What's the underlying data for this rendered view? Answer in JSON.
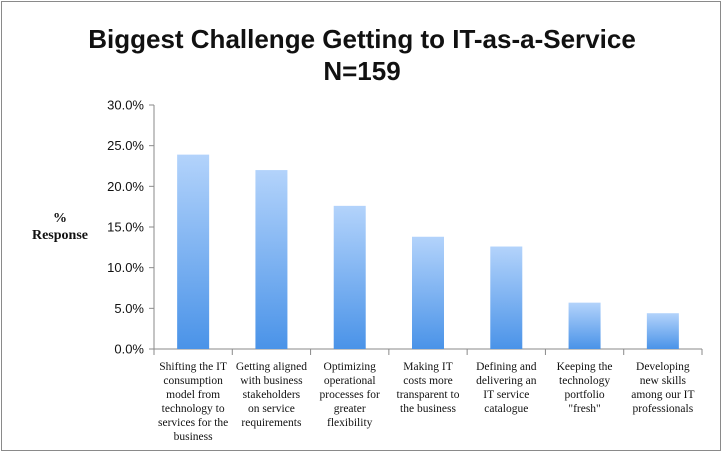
{
  "chart_data": {
    "type": "bar",
    "title": "Biggest Challenge Getting to IT-as-a-Service",
    "subtitle": "N=159",
    "xlabel": "",
    "ylabel": [
      "%",
      "Response"
    ],
    "ylim": [
      0,
      30
    ],
    "yticks": [
      "0.0%",
      "5.0%",
      "10.0%",
      "15.0%",
      "20.0%",
      "25.0%",
      "30.0%"
    ],
    "grid": false,
    "legend": "none",
    "bar_color_top": "#b3d3fb",
    "bar_color_bottom": "#4a93e8",
    "categories": [
      [
        "Shifting the IT",
        "consumption",
        "model from",
        "technology to",
        "services for the",
        "business"
      ],
      [
        "Getting aligned",
        "with business",
        "stakeholders",
        "on service",
        "requirements"
      ],
      [
        "Optimizing",
        "operational",
        "processes for",
        "greater",
        "flexibility"
      ],
      [
        "Making IT",
        "costs more",
        "transparent to",
        "the business"
      ],
      [
        "Defining and",
        "delivering an",
        "IT service",
        "catalogue"
      ],
      [
        "Keeping the",
        "technology",
        "portfolio",
        "\"fresh\""
      ],
      [
        "Developing",
        "new skills",
        "among our IT",
        "professionals"
      ]
    ],
    "values": [
      23.9,
      22.0,
      17.6,
      13.8,
      12.6,
      5.7,
      4.4
    ]
  }
}
